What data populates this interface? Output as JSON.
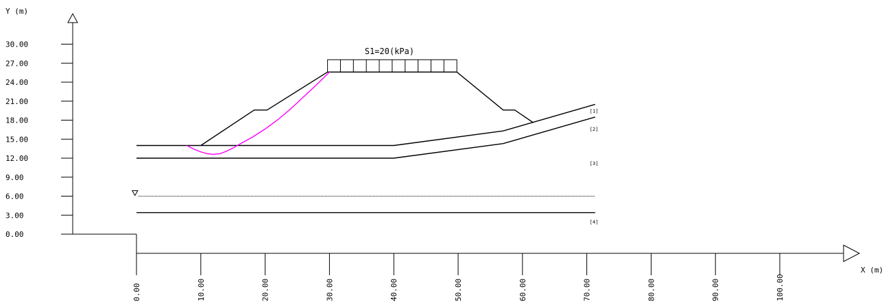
{
  "chart_data": {
    "type": "diagram",
    "y_axis": {
      "title": "Y (m)",
      "ticks": [
        {
          "value": 0,
          "label": "0.00"
        },
        {
          "value": 3,
          "label": "3.00"
        },
        {
          "value": 6,
          "label": "6.00"
        },
        {
          "value": 9,
          "label": "9.00"
        },
        {
          "value": 12,
          "label": "12.00"
        },
        {
          "value": 15,
          "label": "15.00"
        },
        {
          "value": 18,
          "label": "18.00"
        },
        {
          "value": 21,
          "label": "21.00"
        },
        {
          "value": 24,
          "label": "24.00"
        },
        {
          "value": 27,
          "label": "27.00"
        },
        {
          "value": 30,
          "label": "30.00"
        }
      ]
    },
    "x_axis": {
      "title": "X (m)",
      "ticks": [
        {
          "value": 0,
          "label": "0.00"
        },
        {
          "value": 10,
          "label": "10.00"
        },
        {
          "value": 20,
          "label": "20.00"
        },
        {
          "value": 30,
          "label": "30.00"
        },
        {
          "value": 40,
          "label": "40.00"
        },
        {
          "value": 50,
          "label": "50.00"
        },
        {
          "value": 60,
          "label": "60.00"
        },
        {
          "value": 70,
          "label": "70.00"
        },
        {
          "value": 80,
          "label": "80.00"
        },
        {
          "value": 90,
          "label": "90.00"
        },
        {
          "value": 100,
          "label": "100.00"
        }
      ]
    },
    "surcharge": {
      "label": "S1=20(kPa)",
      "x_start": 29.7,
      "x_end": 49.8,
      "y": 25.6,
      "cells": 10
    },
    "embankment": [
      [
        10,
        14
      ],
      [
        18.3,
        19.6
      ],
      [
        20.3,
        19.6
      ],
      [
        29.7,
        25.6
      ],
      [
        49.8,
        25.6
      ],
      [
        57,
        19.6
      ],
      [
        58.8,
        19.6
      ],
      [
        61.7,
        17.6
      ]
    ],
    "layer_boundaries": [
      {
        "name": "top",
        "points": [
          [
            0,
            14
          ],
          [
            40,
            14
          ],
          [
            57,
            16.3
          ],
          [
            71.3,
            20.5
          ]
        ]
      },
      {
        "name": "interface-2-3",
        "points": [
          [
            0,
            12
          ],
          [
            40,
            12
          ],
          [
            57,
            14.3
          ],
          [
            71.3,
            18.5
          ]
        ]
      },
      {
        "name": "interface-3-4",
        "points": [
          [
            0,
            3.4
          ],
          [
            71.3,
            3.4
          ]
        ]
      }
    ],
    "water_table": {
      "y": 6,
      "x_start": 0.3,
      "x_end": 71.3
    },
    "slip_surface": {
      "color": "#ff00ff",
      "points": [
        [
          7.8,
          14
        ],
        [
          9,
          13.4
        ],
        [
          10,
          13
        ],
        [
          11,
          12.7
        ],
        [
          12,
          12.6
        ],
        [
          13,
          12.7
        ],
        [
          14,
          13.1
        ],
        [
          15,
          13.6
        ],
        [
          16,
          14.2
        ],
        [
          18,
          15.3
        ],
        [
          20,
          16.6
        ],
        [
          22,
          18.1
        ],
        [
          24,
          19.8
        ],
        [
          26,
          21.7
        ],
        [
          28,
          23.6
        ],
        [
          30,
          25.6
        ]
      ]
    },
    "layer_labels": [
      {
        "label": "[1]",
        "x": 71.3,
        "y": 19.2
      },
      {
        "label": "[2]",
        "x": 71.3,
        "y": 16.3
      },
      {
        "label": "[3]",
        "x": 71.3,
        "y": 10.9
      },
      {
        "label": "[4]",
        "x": 71.3,
        "y": 1.7
      }
    ]
  }
}
